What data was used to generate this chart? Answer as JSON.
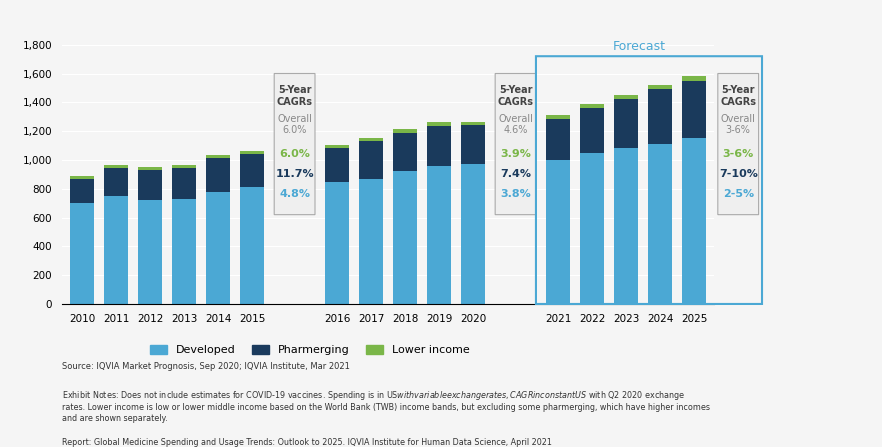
{
  "years": [
    2010,
    2011,
    2012,
    2013,
    2014,
    2015,
    2016,
    2017,
    2018,
    2019,
    2020,
    2021,
    2022,
    2023,
    2024,
    2025
  ],
  "developed": [
    700,
    750,
    725,
    730,
    780,
    810,
    850,
    870,
    920,
    955,
    970,
    1000,
    1050,
    1080,
    1110,
    1155
  ],
  "pharmerging": [
    170,
    195,
    205,
    215,
    235,
    230,
    230,
    260,
    270,
    280,
    270,
    285,
    310,
    340,
    380,
    395
  ],
  "lower_income": [
    20,
    20,
    20,
    22,
    22,
    22,
    25,
    25,
    25,
    25,
    25,
    27,
    28,
    30,
    32,
    35
  ],
  "colors": {
    "developed": "#4BA8D4",
    "pharmerging": "#1A3A5C",
    "lower_income": "#7AB648",
    "forecast_box": "#4BA8D4",
    "cagr_box1_bg": "#f0f0f0",
    "cagr_box2_bg": "#f0f0f0",
    "cagr_box3_bg": "#f0f0f0",
    "background": "#f5f5f5"
  },
  "cagr_2015": {
    "title": "5-Year\nCAGRs",
    "overall": "Overall\n6.0%",
    "green": "6.0%",
    "dark": "11.7%",
    "light": "4.8%"
  },
  "cagr_2020": {
    "title": "5-Year\nCAGRs",
    "overall": "Overall\n4.6%",
    "green": "3.9%",
    "dark": "7.4%",
    "light": "3.8%"
  },
  "cagr_2025": {
    "title": "5-Year\nCAGRs",
    "overall": "Overall\n3-6%",
    "green": "3-6%",
    "dark": "7-10%",
    "light": "2-5%"
  },
  "forecast_label": "Forecast",
  "ylim": [
    0,
    1800
  ],
  "yticks": [
    0,
    200,
    400,
    600,
    800,
    1000,
    1200,
    1400,
    1600,
    1800
  ],
  "source_text": "Source: IQVIA Market Prognosis, Sep 2020; IQVIA Institute, Mar 2021",
  "exhibit_text": "Exhibit Notes: Does not include estimates for COVID-19 vaccines. Spending is in US$ with variable exchange rates, CAGR in constant US$ with Q2 2020 exchange\nrates. Lower income is low or lower middle income based on the World Bank (TWB) income bands, but excluding some pharmerging, which have higher incomes\nand are shown separately.",
  "report_text": "Report: Global Medicine Spending and Usage Trends: Outlook to 2025. IQVIA Institute for Human Data Science, April 2021"
}
